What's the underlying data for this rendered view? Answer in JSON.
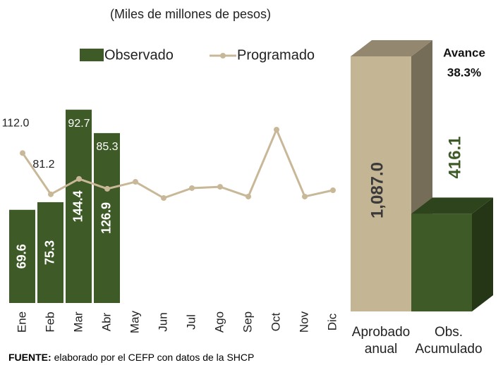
{
  "chart_data": [
    {
      "type": "combo",
      "subtitle": "(Miles de millones de pesos)",
      "categories": [
        "Ene",
        "Feb",
        "Mar",
        "Abr",
        "May",
        "Jun",
        "Jul",
        "Ago",
        "Sep",
        "Oct",
        "Nov",
        "Dic"
      ],
      "series": [
        {
          "name": "Observado",
          "type": "bar",
          "color": "#3d5a27",
          "values": [
            69.6,
            75.3,
            144.4,
            126.9,
            null,
            null,
            null,
            null,
            null,
            null,
            null,
            null
          ]
        },
        {
          "name": "Programado",
          "type": "line",
          "color": "#c8b898",
          "values": [
            112.0,
            81.2,
            92.7,
            85.3,
            90.5,
            78.4,
            85.8,
            86.8,
            79.5,
            129.5,
            79.5,
            84.2
          ],
          "value_labels": [
            "112.0",
            "81.2",
            "92.7",
            "85.3",
            null,
            null,
            null,
            null,
            null,
            null,
            null,
            null
          ]
        }
      ],
      "source_label": "FUENTE:",
      "source": "elaborado por el CEFP con datos de la SHCP"
    },
    {
      "type": "bar3d",
      "categories": [
        "Aprobado anual",
        "Obs. Acumulado"
      ],
      "values": [
        1087.0,
        416.1
      ],
      "value_labels": [
        "1,087.0",
        "416.1"
      ],
      "colors": [
        "#c4b594",
        "#3d5a27"
      ],
      "label_colors": [
        "#3a3a3a",
        "#3d5a27"
      ],
      "annotation": {
        "label": "Avance",
        "value": 38.3,
        "value_label": "38.3%"
      }
    }
  ]
}
